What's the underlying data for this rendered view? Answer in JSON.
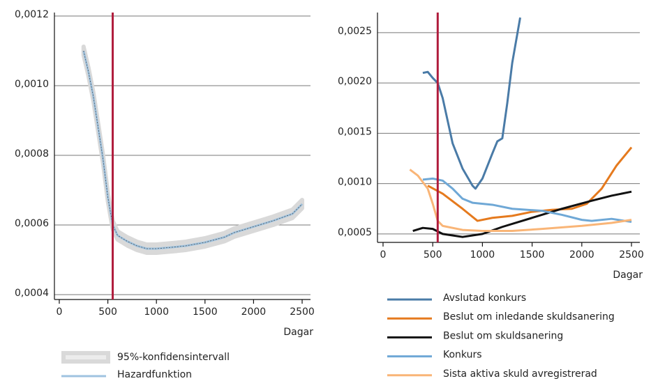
{
  "chart_data": [
    {
      "type": "line",
      "x": [
        250,
        300,
        350,
        400,
        450,
        500,
        550,
        600,
        700,
        800,
        900,
        1000,
        1200,
        1300,
        1500,
        1700,
        1800,
        2000,
        2200,
        2400,
        2500
      ],
      "band": {
        "name": "95%-konfidensintervall",
        "color": "#d9d9d9",
        "upper": [
          0.001112,
          0.001052,
          0.000982,
          0.000892,
          0.000802,
          0.000692,
          0.000612,
          0.000582,
          0.000565,
          0.000552,
          0.000544,
          0.000544,
          0.000549,
          0.000552,
          0.000562,
          0.000577,
          0.00059,
          0.000607,
          0.000624,
          0.000644,
          0.000672
        ],
        "lower": [
          0.001088,
          0.001028,
          0.000958,
          0.000868,
          0.000778,
          0.000668,
          0.000588,
          0.000558,
          0.000541,
          0.000528,
          0.00052,
          0.00052,
          0.000525,
          0.000528,
          0.000538,
          0.000553,
          0.000566,
          0.000583,
          0.0006,
          0.00062,
          0.000648
        ]
      },
      "series": [
        {
          "name": "Hazardfunktion",
          "color": "#9fc3e0",
          "values": [
            0.0011,
            0.00104,
            0.00097,
            0.00088,
            0.00079,
            0.00068,
            0.0006,
            0.00057,
            0.000553,
            0.00054,
            0.000532,
            0.000532,
            0.000537,
            0.00054,
            0.00055,
            0.000565,
            0.000578,
            0.000595,
            0.000612,
            0.000632,
            0.00066
          ]
        }
      ],
      "x_label": "Dagar",
      "xlim": [
        -50,
        2586
      ],
      "ylim": [
        0.000386,
        0.00121
      ],
      "xticks": [
        0,
        500,
        1000,
        1500,
        2000,
        2500
      ],
      "yticks": [
        {
          "value": 0.0004,
          "label": "0,0004"
        },
        {
          "value": 0.0006,
          "label": "0,0006"
        },
        {
          "value": 0.0008,
          "label": "0,0008"
        },
        {
          "value": 0.001,
          "label": "0,0010"
        },
        {
          "value": 0.0012,
          "label": "0,0012"
        }
      ],
      "grid": true,
      "vline": {
        "x": 550,
        "color": "#b01c3c"
      }
    },
    {
      "type": "line",
      "series": [
        {
          "name": "Avslutad konkurs",
          "color": "#4a7ba7",
          "x": [
            400,
            450,
            500,
            550,
            600,
            700,
            800,
            900,
            930,
            1000,
            1100,
            1150,
            1200,
            1250,
            1300,
            1380
          ],
          "values": [
            0.0021,
            0.00211,
            0.00205,
            0.002,
            0.00185,
            0.0014,
            0.00115,
            0.00098,
            0.00095,
            0.00105,
            0.0013,
            0.00142,
            0.00145,
            0.0018,
            0.0022,
            0.00265
          ]
        },
        {
          "name": "Beslut om inledande skuldsanering",
          "color": "#e57a1e",
          "x": [
            450,
            600,
            800,
            950,
            1100,
            1300,
            1500,
            1700,
            1900,
            2050,
            2200,
            2350,
            2500
          ],
          "values": [
            0.00098,
            0.0009,
            0.00075,
            0.00063,
            0.00066,
            0.00068,
            0.00072,
            0.00074,
            0.00075,
            0.0008,
            0.00095,
            0.00118,
            0.00136
          ]
        },
        {
          "name": "Beslut om skuldsanering",
          "color": "#111111",
          "x": [
            300,
            400,
            500,
            600,
            800,
            1000,
            1200,
            1500,
            1800,
            2100,
            2300,
            2500
          ],
          "values": [
            0.00053,
            0.00056,
            0.00055,
            0.0005,
            0.00047,
            0.0005,
            0.00057,
            0.00066,
            0.00075,
            0.00083,
            0.00088,
            0.00092
          ]
        },
        {
          "name": "Konkurs",
          "color": "#6fa8d6",
          "x": [
            400,
            500,
            600,
            700,
            800,
            900,
            1100,
            1300,
            1600,
            1800,
            2000,
            2100,
            2300,
            2500
          ],
          "values": [
            0.00104,
            0.00105,
            0.00103,
            0.00095,
            0.00085,
            0.00081,
            0.00079,
            0.00075,
            0.00073,
            0.00069,
            0.00064,
            0.00063,
            0.00065,
            0.00062
          ]
        },
        {
          "name": "Sista aktiva skuld avregistrerad",
          "color": "#f9b577",
          "x": [
            270,
            350,
            450,
            500,
            550,
            600,
            800,
            1000,
            1300,
            1600,
            2000,
            2300,
            2500
          ],
          "values": [
            0.00114,
            0.00108,
            0.00095,
            0.0008,
            0.00063,
            0.00058,
            0.00054,
            0.00053,
            0.00053,
            0.00055,
            0.00058,
            0.00061,
            0.00064
          ]
        }
      ],
      "x_label": "Dagar",
      "xlim": [
        -56,
        2584
      ],
      "ylim": [
        0.000416,
        0.0027
      ],
      "xticks": [
        0,
        500,
        1000,
        1500,
        2000,
        2500
      ],
      "yticks": [
        {
          "value": 0.0005,
          "label": "0,0005"
        },
        {
          "value": 0.001,
          "label": "0,0010"
        },
        {
          "value": 0.0015,
          "label": "0,0015"
        },
        {
          "value": 0.002,
          "label": "0,0020"
        },
        {
          "value": 0.0025,
          "label": "0,0025"
        }
      ],
      "grid": true,
      "vline": {
        "x": 550,
        "color": "#b01c3c"
      }
    }
  ]
}
